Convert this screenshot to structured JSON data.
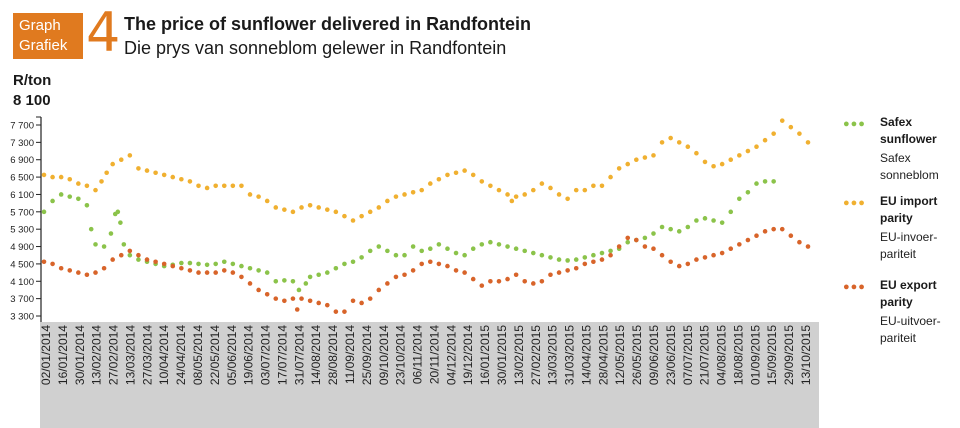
{
  "header": {
    "badge_line1": "Graph",
    "badge_line2": "Grafiek",
    "figure_number": "4",
    "title_en": "The price of sunflower delivered in Randfontein",
    "title_af": "Die prys van sonneblom gelewer in Randfontein"
  },
  "chart_data": {
    "type": "scatter",
    "ylabel": "R/ton",
    "ylabel_max": "8 100",
    "ylim": [
      3300,
      8100
    ],
    "yticks": [
      "7 700",
      "7 300",
      "6 900",
      "6 500",
      "6 100",
      "5 700",
      "5 300",
      "4 900",
      "4 500",
      "4 100",
      "3 700",
      "3 300"
    ],
    "x_labels": [
      "02/01/2014",
      "16/01/2014",
      "30/01/2014",
      "13/02/2014",
      "27/02/2014",
      "13/03/2014",
      "27/03/2014",
      "10/04/2014",
      "24/04/2014",
      "08/05/2014",
      "22/05/2014",
      "05/06/2014",
      "19/06/2014",
      "03/07/2014",
      "17/07/2014",
      "31/07/2014",
      "14/08/2014",
      "28/08/2014",
      "11/09/2014",
      "25/09/2014",
      "09/10/2014",
      "23/10/2014",
      "06/11/2014",
      "20/11/2014",
      "04/12/2014",
      "19/12/2014",
      "16/01/2015",
      "30/01/2015",
      "13/02/2015",
      "27/02/2015",
      "13/03/2015",
      "31/03/2015",
      "14/04/2015",
      "28/04/2015",
      "12/05/2015",
      "26/05/2015",
      "09/06/2015",
      "23/06/2015",
      "07/07/2015",
      "21/07/2015",
      "04/08/2015",
      "18/08/2015",
      "01/09/2015",
      "15/09/2015",
      "29/09/2015",
      "13/10/2015"
    ],
    "grid": false,
    "legend_position": "right",
    "series": [
      {
        "name_en": "Safex sunflower",
        "name_af": "Safex sonneblom",
        "color": "#8bc34a",
        "points": [
          [
            0,
            5700
          ],
          [
            1,
            5950
          ],
          [
            2,
            6100
          ],
          [
            3,
            6050
          ],
          [
            4,
            6000
          ],
          [
            5,
            5850
          ],
          [
            5.5,
            5300
          ],
          [
            6,
            4950
          ],
          [
            7,
            4900
          ],
          [
            7.8,
            5200
          ],
          [
            8.3,
            5650
          ],
          [
            8.6,
            5700
          ],
          [
            8.9,
            5450
          ],
          [
            9.3,
            4950
          ],
          [
            10,
            4700
          ],
          [
            11,
            4600
          ],
          [
            12,
            4550
          ],
          [
            13,
            4500
          ],
          [
            14,
            4450
          ],
          [
            15,
            4480
          ],
          [
            16,
            4520
          ],
          [
            17,
            4520
          ],
          [
            18,
            4500
          ],
          [
            19,
            4480
          ],
          [
            20,
            4500
          ],
          [
            21,
            4550
          ],
          [
            22,
            4500
          ],
          [
            23,
            4450
          ],
          [
            24,
            4400
          ],
          [
            25,
            4350
          ],
          [
            26,
            4300
          ],
          [
            27,
            4100
          ],
          [
            28,
            4120
          ],
          [
            29,
            4100
          ],
          [
            29.7,
            3900
          ],
          [
            30.5,
            4050
          ],
          [
            31,
            4200
          ],
          [
            32,
            4250
          ],
          [
            33,
            4300
          ],
          [
            34,
            4400
          ],
          [
            35,
            4500
          ],
          [
            36,
            4550
          ],
          [
            37,
            4650
          ],
          [
            38,
            4800
          ],
          [
            39,
            4900
          ],
          [
            40,
            4800
          ],
          [
            41,
            4700
          ],
          [
            42,
            4700
          ],
          [
            43,
            4900
          ],
          [
            44,
            4800
          ],
          [
            45,
            4850
          ],
          [
            46,
            4950
          ],
          [
            47,
            4850
          ],
          [
            48,
            4750
          ],
          [
            49,
            4700
          ],
          [
            50,
            4850
          ],
          [
            51,
            4950
          ],
          [
            52,
            5000
          ],
          [
            53,
            4950
          ],
          [
            54,
            4900
          ],
          [
            55,
            4850
          ],
          [
            56,
            4800
          ],
          [
            57,
            4750
          ],
          [
            58,
            4700
          ],
          [
            59,
            4650
          ],
          [
            60,
            4600
          ],
          [
            61,
            4580
          ],
          [
            62,
            4600
          ],
          [
            63,
            4650
          ],
          [
            64,
            4700
          ],
          [
            65,
            4750
          ],
          [
            66,
            4800
          ],
          [
            67,
            4850
          ],
          [
            68,
            5000
          ],
          [
            69,
            5050
          ],
          [
            70,
            5100
          ],
          [
            71,
            5200
          ],
          [
            72,
            5350
          ],
          [
            73,
            5300
          ],
          [
            74,
            5250
          ],
          [
            75,
            5350
          ],
          [
            76,
            5500
          ],
          [
            77,
            5550
          ],
          [
            78,
            5500
          ],
          [
            79,
            5450
          ],
          [
            80,
            5700
          ],
          [
            81,
            6000
          ],
          [
            82,
            6150
          ],
          [
            83,
            6350
          ],
          [
            84,
            6400
          ],
          [
            85,
            6400
          ]
        ]
      },
      {
        "name_en": "EU import parity",
        "name_af": "EU-invoer-pariteit",
        "color": "#f0b030",
        "points": [
          [
            0,
            6550
          ],
          [
            1,
            6500
          ],
          [
            2,
            6500
          ],
          [
            3,
            6450
          ],
          [
            4,
            6350
          ],
          [
            5,
            6300
          ],
          [
            6,
            6200
          ],
          [
            6.7,
            6400
          ],
          [
            7.3,
            6600
          ],
          [
            8,
            6800
          ],
          [
            9,
            6900
          ],
          [
            10,
            7000
          ],
          [
            11,
            6700
          ],
          [
            12,
            6650
          ],
          [
            13,
            6600
          ],
          [
            14,
            6550
          ],
          [
            15,
            6500
          ],
          [
            16,
            6450
          ],
          [
            17,
            6400
          ],
          [
            18,
            6300
          ],
          [
            19,
            6250
          ],
          [
            20,
            6300
          ],
          [
            21,
            6300
          ],
          [
            22,
            6300
          ],
          [
            23,
            6300
          ],
          [
            24,
            6100
          ],
          [
            25,
            6050
          ],
          [
            26,
            5950
          ],
          [
            27,
            5800
          ],
          [
            28,
            5750
          ],
          [
            29,
            5700
          ],
          [
            30,
            5800
          ],
          [
            31,
            5850
          ],
          [
            32,
            5800
          ],
          [
            33,
            5750
          ],
          [
            34,
            5700
          ],
          [
            35,
            5600
          ],
          [
            36,
            5500
          ],
          [
            37,
            5600
          ],
          [
            38,
            5700
          ],
          [
            39,
            5800
          ],
          [
            40,
            5950
          ],
          [
            41,
            6050
          ],
          [
            42,
            6100
          ],
          [
            43,
            6150
          ],
          [
            44,
            6200
          ],
          [
            45,
            6350
          ],
          [
            46,
            6450
          ],
          [
            47,
            6550
          ],
          [
            48,
            6600
          ],
          [
            49,
            6650
          ],
          [
            50,
            6550
          ],
          [
            51,
            6400
          ],
          [
            52,
            6300
          ],
          [
            53,
            6200
          ],
          [
            54,
            6100
          ],
          [
            54.5,
            5950
          ],
          [
            55,
            6050
          ],
          [
            56,
            6100
          ],
          [
            57,
            6200
          ],
          [
            58,
            6350
          ],
          [
            59,
            6250
          ],
          [
            60,
            6100
          ],
          [
            61,
            6000
          ],
          [
            62,
            6200
          ],
          [
            63,
            6200
          ],
          [
            64,
            6300
          ],
          [
            65,
            6300
          ],
          [
            66,
            6500
          ],
          [
            67,
            6700
          ],
          [
            68,
            6800
          ],
          [
            69,
            6900
          ],
          [
            70,
            6950
          ],
          [
            71,
            7000
          ],
          [
            72,
            7300
          ],
          [
            73,
            7400
          ],
          [
            74,
            7300
          ],
          [
            75,
            7200
          ],
          [
            76,
            7050
          ],
          [
            77,
            6850
          ],
          [
            78,
            6750
          ],
          [
            79,
            6800
          ],
          [
            80,
            6900
          ],
          [
            81,
            7000
          ],
          [
            82,
            7100
          ],
          [
            83,
            7200
          ],
          [
            84,
            7350
          ],
          [
            85,
            7500
          ],
          [
            86,
            7800
          ],
          [
            87,
            7650
          ],
          [
            88,
            7500
          ],
          [
            89,
            7300
          ]
        ]
      },
      {
        "name_en": "EU export parity",
        "name_af": "EU-uitvoer-pariteit",
        "color": "#d8642a",
        "points": [
          [
            0,
            4550
          ],
          [
            1,
            4500
          ],
          [
            2,
            4400
          ],
          [
            3,
            4350
          ],
          [
            4,
            4300
          ],
          [
            5,
            4250
          ],
          [
            6,
            4300
          ],
          [
            7,
            4400
          ],
          [
            8,
            4600
          ],
          [
            9,
            4700
          ],
          [
            10,
            4800
          ],
          [
            11,
            4700
          ],
          [
            12,
            4600
          ],
          [
            13,
            4550
          ],
          [
            14,
            4500
          ],
          [
            15,
            4450
          ],
          [
            16,
            4400
          ],
          [
            17,
            4350
          ],
          [
            18,
            4300
          ],
          [
            19,
            4300
          ],
          [
            20,
            4300
          ],
          [
            21,
            4350
          ],
          [
            22,
            4300
          ],
          [
            23,
            4200
          ],
          [
            24,
            4050
          ],
          [
            25,
            3900
          ],
          [
            26,
            3800
          ],
          [
            27,
            3700
          ],
          [
            28,
            3650
          ],
          [
            29,
            3700
          ],
          [
            29.5,
            3450
          ],
          [
            30,
            3700
          ],
          [
            31,
            3650
          ],
          [
            32,
            3600
          ],
          [
            33,
            3550
          ],
          [
            34,
            3400
          ],
          [
            35,
            3400
          ],
          [
            36,
            3650
          ],
          [
            37,
            3600
          ],
          [
            38,
            3700
          ],
          [
            39,
            3900
          ],
          [
            40,
            4050
          ],
          [
            41,
            4200
          ],
          [
            42,
            4250
          ],
          [
            43,
            4350
          ],
          [
            44,
            4500
          ],
          [
            45,
            4550
          ],
          [
            46,
            4500
          ],
          [
            47,
            4450
          ],
          [
            48,
            4350
          ],
          [
            49,
            4300
          ],
          [
            50,
            4150
          ],
          [
            51,
            4000
          ],
          [
            52,
            4100
          ],
          [
            53,
            4100
          ],
          [
            54,
            4150
          ],
          [
            55,
            4250
          ],
          [
            56,
            4100
          ],
          [
            57,
            4050
          ],
          [
            58,
            4100
          ],
          [
            59,
            4250
          ],
          [
            60,
            4300
          ],
          [
            61,
            4350
          ],
          [
            62,
            4400
          ],
          [
            63,
            4500
          ],
          [
            64,
            4550
          ],
          [
            65,
            4600
          ],
          [
            66,
            4700
          ],
          [
            67,
            4900
          ],
          [
            68,
            5100
          ],
          [
            69,
            5050
          ],
          [
            70,
            4900
          ],
          [
            71,
            4850
          ],
          [
            72,
            4700
          ],
          [
            73,
            4550
          ],
          [
            74,
            4450
          ],
          [
            75,
            4500
          ],
          [
            76,
            4600
          ],
          [
            77,
            4650
          ],
          [
            78,
            4700
          ],
          [
            79,
            4750
          ],
          [
            80,
            4850
          ],
          [
            81,
            4950
          ],
          [
            82,
            5050
          ],
          [
            83,
            5150
          ],
          [
            84,
            5250
          ],
          [
            85,
            5300
          ],
          [
            86,
            5300
          ],
          [
            87,
            5150
          ],
          [
            88,
            5000
          ],
          [
            89,
            4900
          ]
        ]
      }
    ]
  }
}
